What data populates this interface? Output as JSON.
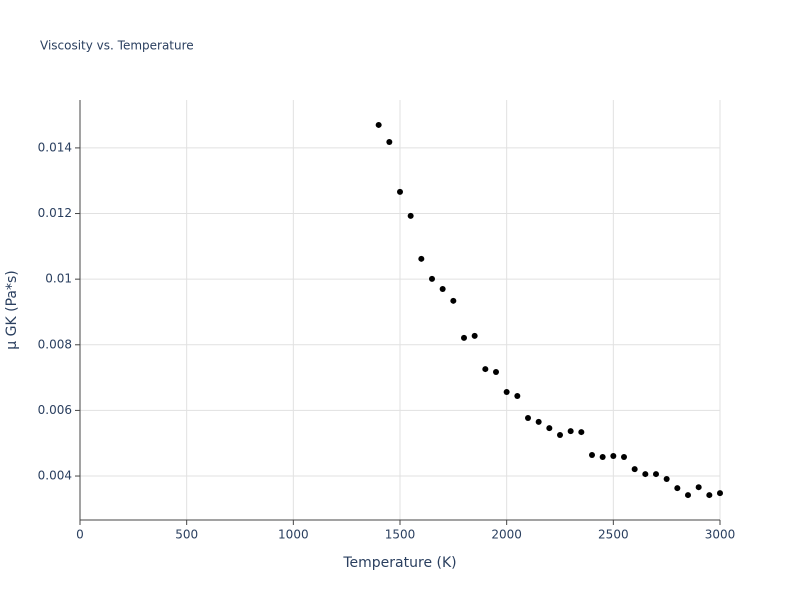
{
  "chart_data": {
    "type": "scatter",
    "title": "Viscosity vs. Temperature",
    "x_label": "Temperature (K)",
    "y_label": "μ GK (Pa*s)",
    "color": "#000000",
    "grid": true,
    "xlim": [
      0,
      3000
    ],
    "xticks": [
      0,
      500,
      1000,
      1500,
      2000,
      2500,
      3000
    ],
    "ylim": [
      0.00266,
      0.01546
    ],
    "yticks": [
      0.004,
      0.006,
      0.008,
      0.01,
      0.012,
      0.014
    ],
    "x": [
      1400,
      1450,
      1500,
      1550,
      1600,
      1650,
      1700,
      1750,
      1800,
      1850,
      1900,
      1950,
      2000,
      2050,
      2100,
      2150,
      2200,
      2250,
      2300,
      2350,
      2400,
      2450,
      2500,
      2550,
      2600,
      2650,
      2700,
      2750,
      2800,
      2850,
      2900,
      2950,
      3000
    ],
    "values": [
      0.0147,
      0.01418,
      0.01266,
      0.01193,
      0.01062,
      0.01001,
      0.0097,
      0.00934,
      0.00821,
      0.00827,
      0.00726,
      0.00717,
      0.00656,
      0.00644,
      0.00577,
      0.00565,
      0.00546,
      0.00525,
      0.00537,
      0.00534,
      0.00464,
      0.00458,
      0.00461,
      0.00458,
      0.00421,
      0.00406,
      0.00406,
      0.00391,
      0.00363,
      0.00342,
      0.00366,
      0.00342,
      0.00348
    ]
  }
}
